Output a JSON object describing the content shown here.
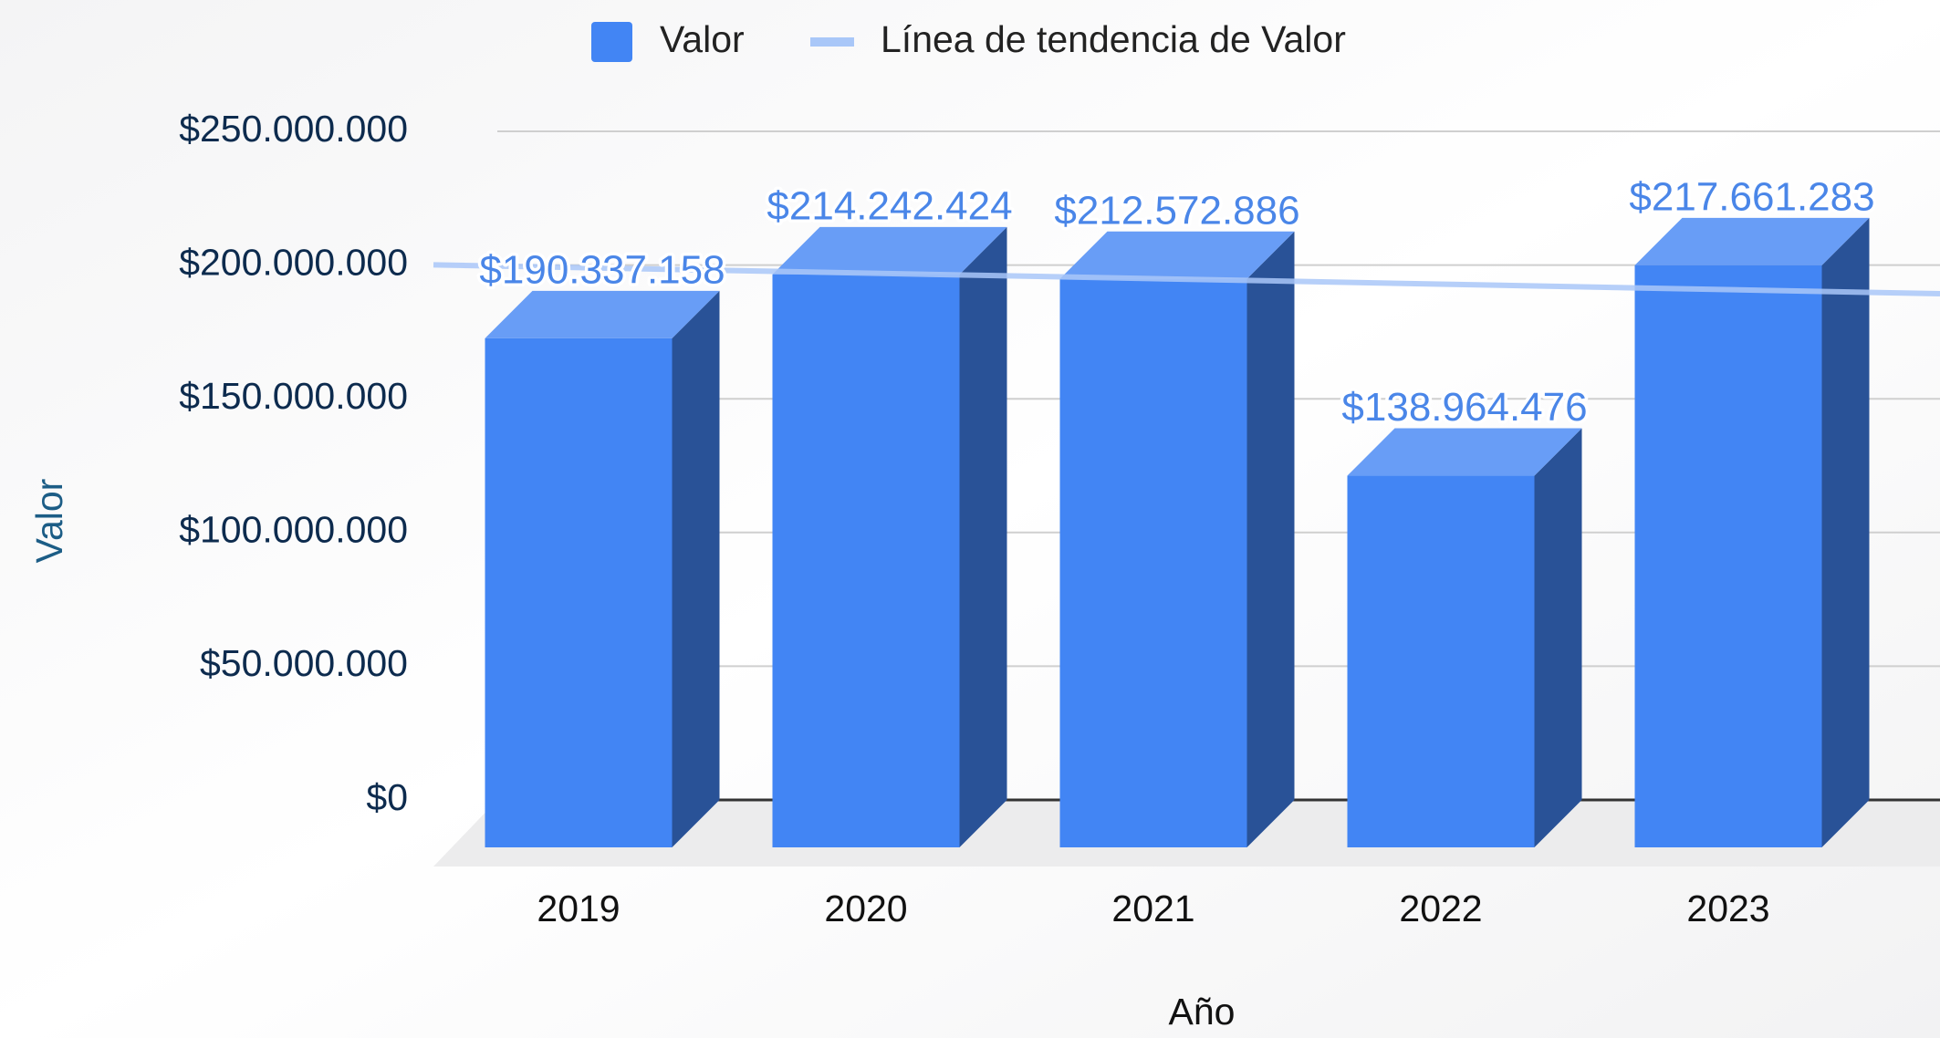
{
  "chart_data": {
    "type": "bar3d",
    "categories": [
      "2019",
      "2020",
      "2021",
      "2022",
      "2023"
    ],
    "series": [
      {
        "name": "Valor",
        "color": "#4285f4",
        "values": [
          190337158,
          214242424,
          212572886,
          138964476,
          217661283
        ],
        "value_labels": [
          "$190.337.158",
          "$214.242.424",
          "$212.572.886",
          "$138.964.476",
          "$217.661.283"
        ]
      }
    ],
    "trendline": {
      "name": "Línea de tendencia de Valor",
      "color": "#a9c7f8"
    },
    "ylim": [
      0,
      250000000
    ],
    "yticks": [
      {
        "value": 0,
        "label": "$0"
      },
      {
        "value": 50000000,
        "label": "$50.000.000"
      },
      {
        "value": 100000000,
        "label": "$100.000.000"
      },
      {
        "value": 150000000,
        "label": "$150.000.000"
      },
      {
        "value": 200000000,
        "label": "$200.000.000"
      },
      {
        "value": 250000000,
        "label": "$250.000.000"
      }
    ],
    "ylabel": "Valor",
    "xlabel": "Año",
    "grid": true,
    "legend": "top"
  }
}
